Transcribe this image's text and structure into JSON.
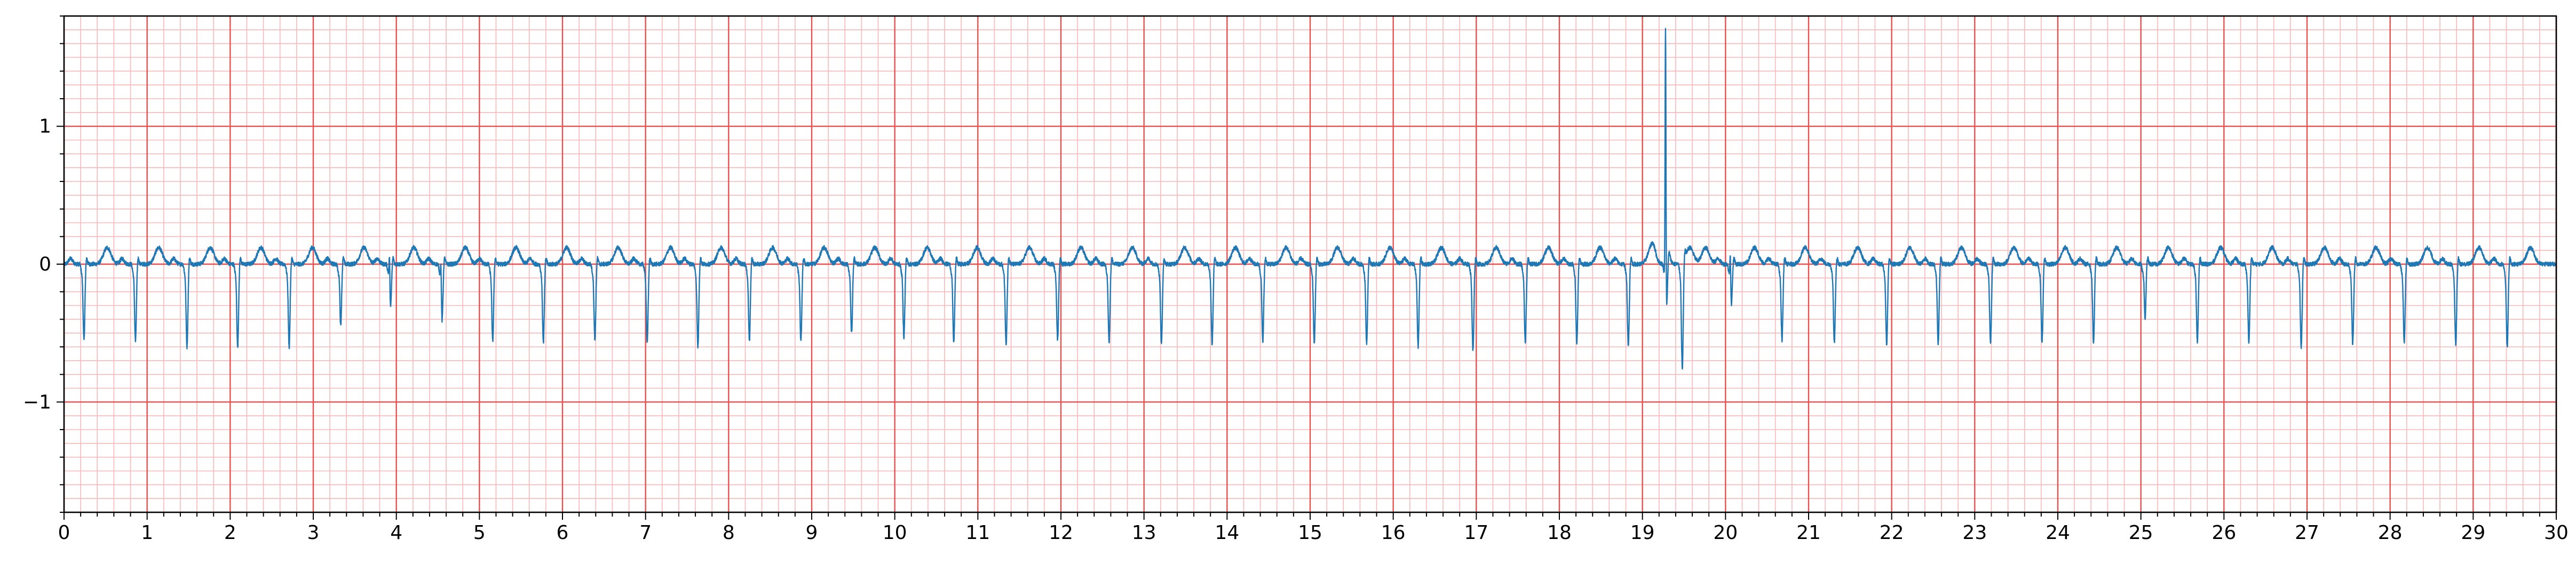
{
  "chart_data": {
    "type": "line",
    "title": "",
    "xlabel": "",
    "ylabel": "",
    "xlim": [
      0,
      30
    ],
    "ylim": [
      -1.8,
      1.8
    ],
    "x_ticks": [
      0,
      1,
      2,
      3,
      4,
      5,
      6,
      7,
      8,
      9,
      10,
      11,
      12,
      13,
      14,
      15,
      16,
      17,
      18,
      19,
      20,
      21,
      22,
      23,
      24,
      25,
      26,
      27,
      28,
      29,
      30
    ],
    "x_tick_labels": [
      "0",
      "1",
      "2",
      "3",
      "4",
      "5",
      "6",
      "7",
      "8",
      "9",
      "10",
      "11",
      "12",
      "13",
      "14",
      "15",
      "16",
      "17",
      "18",
      "19",
      "20",
      "21",
      "22",
      "23",
      "24",
      "25",
      "26",
      "27",
      "28",
      "29",
      "30"
    ],
    "y_ticks": [
      -1,
      0,
      1
    ],
    "y_tick_labels": [
      "−1",
      "0",
      "1"
    ],
    "grid": {
      "major": true,
      "minor": true,
      "major_x_step": 1,
      "minor_x_step": 0.2,
      "major_y_step": 1,
      "minor_y_step": 0.1,
      "major_color": "#e85050",
      "minor_color": "#f8b8b8"
    },
    "series": [
      {
        "color": "#1f77b4",
        "sample_rate_hz": 500,
        "baseline": 0,
        "beat_template": {
          "q_amplitude": -0.05,
          "r_amplitude": -0.55,
          "s_amplitude": 0.05,
          "t_amplitude": 0.12,
          "p_amplitude": 0.04
        },
        "beats": [
          {
            "t": 0.24,
            "depth": -0.55
          },
          {
            "t": 0.86,
            "depth": -0.56
          },
          {
            "t": 1.48,
            "depth": -0.6
          },
          {
            "t": 2.09,
            "depth": -0.6
          },
          {
            "t": 2.71,
            "depth": -0.6
          },
          {
            "t": 3.33,
            "depth": -0.45,
            "spike": 0.05
          },
          {
            "t": 3.93,
            "depth": -0.32,
            "spike": 0.22
          },
          {
            "t": 4.55,
            "depth": -0.42,
            "spike": 0.2
          },
          {
            "t": 5.16,
            "depth": -0.56
          },
          {
            "t": 5.77,
            "depth": -0.57
          },
          {
            "t": 6.39,
            "depth": -0.55
          },
          {
            "t": 7.02,
            "depth": -0.57
          },
          {
            "t": 7.63,
            "depth": -0.6
          },
          {
            "t": 8.25,
            "depth": -0.55
          },
          {
            "t": 8.87,
            "depth": -0.56
          },
          {
            "t": 9.48,
            "depth": -0.5
          },
          {
            "t": 10.11,
            "depth": -0.53
          },
          {
            "t": 10.71,
            "depth": -0.57
          },
          {
            "t": 11.34,
            "depth": -0.58
          },
          {
            "t": 11.96,
            "depth": -0.55
          },
          {
            "t": 12.58,
            "depth": -0.57
          },
          {
            "t": 13.21,
            "depth": -0.58
          },
          {
            "t": 13.82,
            "depth": -0.58
          },
          {
            "t": 14.43,
            "depth": -0.56
          },
          {
            "t": 15.05,
            "depth": -0.57
          },
          {
            "t": 15.68,
            "depth": -0.57
          },
          {
            "t": 16.3,
            "depth": -0.6
          },
          {
            "t": 16.96,
            "depth": -0.63
          },
          {
            "t": 17.59,
            "depth": -0.57
          },
          {
            "t": 18.21,
            "depth": -0.57
          },
          {
            "t": 18.83,
            "depth": -0.6
          },
          {
            "t": 19.29,
            "depth": -0.35,
            "spike": 1.9
          },
          {
            "t": 19.48,
            "depth": -0.78
          },
          {
            "t": 20.07,
            "depth": -0.3,
            "spike": 0.22
          },
          {
            "t": 20.68,
            "depth": -0.55
          },
          {
            "t": 21.31,
            "depth": -0.57
          },
          {
            "t": 21.94,
            "depth": -0.58
          },
          {
            "t": 22.56,
            "depth": -0.57
          },
          {
            "t": 23.19,
            "depth": -0.58
          },
          {
            "t": 23.81,
            "depth": -0.57
          },
          {
            "t": 24.43,
            "depth": -0.57
          },
          {
            "t": 25.05,
            "depth": -0.4,
            "spike": 0.05
          },
          {
            "t": 25.68,
            "depth": -0.56
          },
          {
            "t": 26.3,
            "depth": -0.57
          },
          {
            "t": 26.93,
            "depth": -0.6
          },
          {
            "t": 27.55,
            "depth": -0.58
          },
          {
            "t": 28.17,
            "depth": -0.57
          },
          {
            "t": 28.79,
            "depth": -0.58
          },
          {
            "t": 29.41,
            "depth": -0.6
          }
        ]
      }
    ]
  }
}
